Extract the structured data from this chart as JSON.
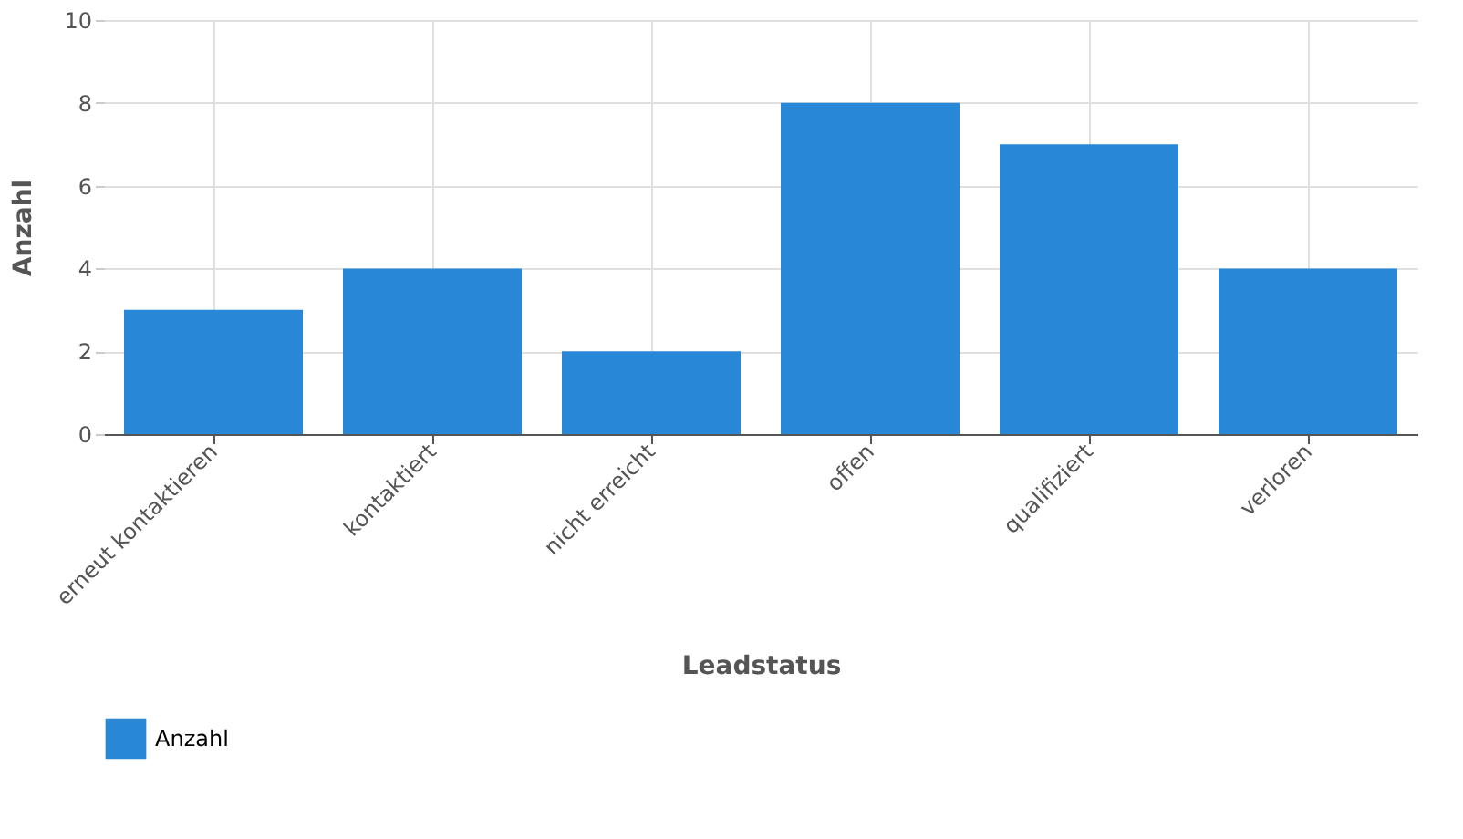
{
  "chart_data": {
    "type": "bar",
    "xlabel": "Leadstatus",
    "ylabel": "Anzahl",
    "categories": [
      "erneut kontaktieren",
      "kontaktiert",
      "nicht erreicht",
      "offen",
      "qualifiziert",
      "verloren"
    ],
    "series": [
      {
        "name": "Anzahl",
        "color": "#2887d6",
        "values": [
          3,
          4,
          2,
          8,
          7,
          4
        ]
      }
    ],
    "ylim": [
      0,
      10
    ],
    "yticks": [
      0,
      2,
      4,
      6,
      8,
      10
    ],
    "grid": true,
    "legend": "bottom left"
  }
}
